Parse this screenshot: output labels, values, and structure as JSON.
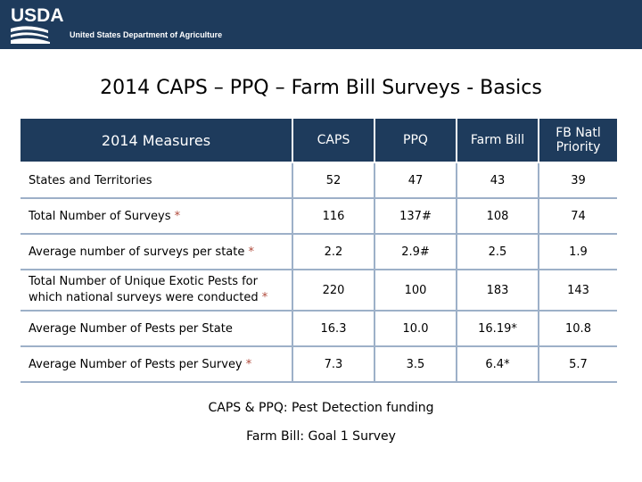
{
  "header": {
    "logo_text": "USDA",
    "agency": "United States Department of Agriculture"
  },
  "slide": {
    "title": "2014 CAPS – PPQ – Farm Bill Surveys - Basics"
  },
  "table": {
    "columns": [
      "2014 Measures",
      "CAPS",
      "PPQ",
      "Farm Bill",
      "FB Natl Priority"
    ],
    "rows": [
      {
        "label": "States and Territories",
        "marker": "",
        "label_line2": "",
        "values": [
          "52",
          "47",
          "43",
          "39"
        ]
      },
      {
        "label": "Total Number of Surveys",
        "marker": "*",
        "label_line2": "",
        "values": [
          "116",
          "137#",
          "108",
          "74"
        ]
      },
      {
        "label": "Average number of surveys per state",
        "marker": "*",
        "label_line2": "",
        "values": [
          "2.2",
          "2.9#",
          "2.5",
          "1.9"
        ]
      },
      {
        "label": "Total Number of Unique Exotic Pests for",
        "marker": "*",
        "label_line2": "which national surveys were conducted",
        "values": [
          "220",
          "100",
          "183",
          "143"
        ]
      },
      {
        "label": "Average Number of Pests per State",
        "marker": "",
        "label_line2": "",
        "values": [
          "16.3",
          "10.0",
          "16.19*",
          "10.8"
        ]
      },
      {
        "label": "Average Number of Pests per Survey",
        "marker": "*",
        "label_line2": "",
        "values": [
          "7.3",
          "3.5",
          "6.4*",
          "5.7"
        ]
      }
    ]
  },
  "notes": {
    "line1": "CAPS & PPQ: Pest Detection funding",
    "line2": "Farm Bill: Goal 1 Survey"
  },
  "colors": {
    "header_fill": "#1e3b5c",
    "row_rule": "#9db0c8",
    "asterisk": "#b04a3b"
  }
}
